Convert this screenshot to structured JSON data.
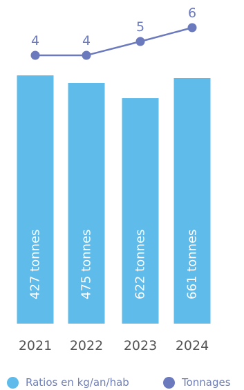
{
  "chart_data": {
    "type": "bar",
    "categories": [
      "2021",
      "2022",
      "2023",
      "2024"
    ],
    "series": [
      {
        "name": "Ratios en kg/an/hab",
        "type": "bar",
        "values": [
          427,
          475,
          622,
          661
        ],
        "labels": [
          "427 tonnes",
          "475 tonnes",
          "622 tonnes",
          "661 tonnes"
        ],
        "color": "#5ebbea"
      },
      {
        "name": "Tonnages",
        "type": "line",
        "values": [
          4,
          4,
          5,
          6
        ],
        "labels": [
          "4",
          "4",
          "5",
          "6"
        ],
        "color": "#6b79bd"
      }
    ],
    "title": "",
    "xlabel": "",
    "ylabel": "",
    "grid": false,
    "legend_position": "bottom"
  },
  "legend": {
    "items": [
      {
        "label": "Ratios en kg/an/hab",
        "color": "#5ebbea"
      },
      {
        "label": "Tonnages",
        "color": "#6b79bd"
      }
    ]
  }
}
